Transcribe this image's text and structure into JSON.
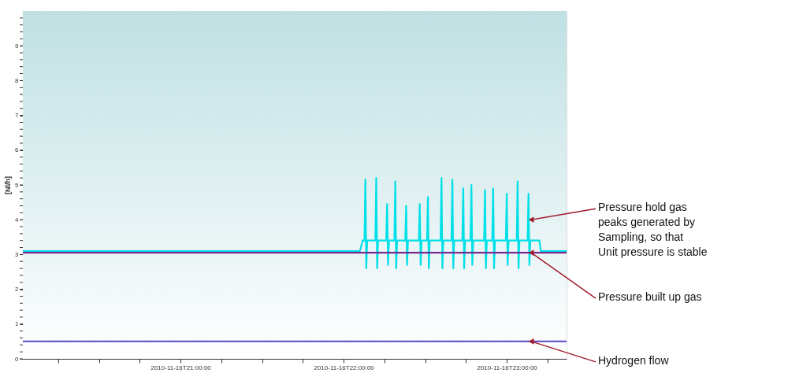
{
  "chart_data": {
    "type": "line",
    "ylabel": "[Nl/h]",
    "xlim": [
      "2010-11-16T20:02",
      "2010-11-16T23:22"
    ],
    "xticks": [
      {
        "value": "2010-11-16T20:15",
        "label": null
      },
      {
        "value": "2010-11-16T20:30",
        "label": null
      },
      {
        "value": "2010-11-16T20:45",
        "label": null
      },
      {
        "value": "2010-11-16T21:00",
        "label": "2010-11-16T21:00:00"
      },
      {
        "value": "2010-11-16T21:15",
        "label": null
      },
      {
        "value": "2010-11-16T21:30",
        "label": null
      },
      {
        "value": "2010-11-16T21:45",
        "label": null
      },
      {
        "value": "2010-11-16T22:00",
        "label": "2010-11-16T22:00:00"
      },
      {
        "value": "2010-11-16T22:15",
        "label": null
      },
      {
        "value": "2010-11-16T22:30",
        "label": null
      },
      {
        "value": "2010-11-16T22:45",
        "label": null
      },
      {
        "value": "2010-11-16T23:00",
        "label": "2010-11-16T23:00:00"
      },
      {
        "value": "2010-11-16T23:15",
        "label": null
      }
    ],
    "ylim": [
      0,
      10
    ],
    "yticks": [
      0,
      {
        "value": 0.2,
        "label": null
      },
      {
        "value": 0.4,
        "label": null
      },
      {
        "value": 0.6,
        "label": null
      },
      {
        "value": 0.8,
        "label": null
      },
      1,
      {
        "value": 1.2,
        "label": null
      },
      {
        "value": 1.4,
        "label": null
      },
      {
        "value": 1.6,
        "label": null
      },
      {
        "value": 1.8,
        "label": null
      },
      2,
      {
        "value": 2.2,
        "label": null
      },
      {
        "value": 2.4,
        "label": null
      },
      {
        "value": 2.6,
        "label": null
      },
      {
        "value": 2.8,
        "label": null
      },
      3,
      {
        "value": 3.2,
        "label": null
      },
      {
        "value": 3.4,
        "label": null
      },
      {
        "value": 3.6,
        "label": null
      },
      {
        "value": 3.8,
        "label": null
      },
      4,
      {
        "value": 4.2,
        "label": null
      },
      {
        "value": 4.4,
        "label": null
      },
      {
        "value": 4.6,
        "label": null
      },
      {
        "value": 4.8,
        "label": null
      },
      5,
      {
        "value": 5.2,
        "label": null
      },
      {
        "value": 5.4,
        "label": null
      },
      {
        "value": 5.6,
        "label": null
      },
      {
        "value": 5.8,
        "label": null
      },
      6,
      {
        "value": 6.2,
        "label": null
      },
      {
        "value": 6.4,
        "label": null
      },
      {
        "value": 6.6,
        "label": null
      },
      {
        "value": 6.8,
        "label": null
      },
      7,
      {
        "value": 7.2,
        "label": null
      },
      {
        "value": 7.4,
        "label": null
      },
      {
        "value": 7.6,
        "label": null
      },
      {
        "value": 7.8,
        "label": null
      },
      8,
      {
        "value": 8.2,
        "label": null
      },
      {
        "value": 8.4,
        "label": null
      },
      {
        "value": 8.6,
        "label": null
      },
      {
        "value": 8.8,
        "label": null
      },
      9,
      {
        "value": 9.2,
        "label": null
      },
      {
        "value": 9.4,
        "label": null
      },
      {
        "value": 9.6,
        "label": null
      },
      {
        "value": 9.8,
        "label": null
      }
    ],
    "marker": "none",
    "line_style": "solid",
    "series": [
      {
        "color": "#00e0e8",
        "x": [
          "2010-11-16T20:02",
          "2010-11-16T22:06",
          "2010-11-16T22:07",
          "2010-11-16T22:07:40",
          "2010-11-16T22:08",
          "2010-11-16T22:08:20",
          "2010-11-16T22:08:40",
          "2010-11-16T22:11:40",
          "2010-11-16T22:12",
          "2010-11-16T22:12:20",
          "2010-11-16T22:12:40",
          "2010-11-16T22:15:40",
          "2010-11-16T22:16",
          "2010-11-16T22:16:20",
          "2010-11-16T22:16:40",
          "2010-11-16T22:18:40",
          "2010-11-16T22:19",
          "2010-11-16T22:19:20",
          "2010-11-16T22:19:40",
          "2010-11-16T22:22:40",
          "2010-11-16T22:23",
          "2010-11-16T22:23:20",
          "2010-11-16T22:23:40",
          "2010-11-16T22:27:40",
          "2010-11-16T22:28",
          "2010-11-16T22:28:20",
          "2010-11-16T22:28:40",
          "2010-11-16T22:30:40",
          "2010-11-16T22:31",
          "2010-11-16T22:31:20",
          "2010-11-16T22:31:40",
          "2010-11-16T22:35:40",
          "2010-11-16T22:36",
          "2010-11-16T22:36:20",
          "2010-11-16T22:36:40",
          "2010-11-16T22:39:40",
          "2010-11-16T22:40",
          "2010-11-16T22:40:20",
          "2010-11-16T22:40:40",
          "2010-11-16T22:43:40",
          "2010-11-16T22:44",
          "2010-11-16T22:44:20",
          "2010-11-16T22:44:40",
          "2010-11-16T22:46:40",
          "2010-11-16T22:47",
          "2010-11-16T22:47:20",
          "2010-11-16T22:47:40",
          "2010-11-16T22:51:40",
          "2010-11-16T22:52",
          "2010-11-16T22:52:20",
          "2010-11-16T22:52:40",
          "2010-11-16T22:54:40",
          "2010-11-16T22:55",
          "2010-11-16T22:55:20",
          "2010-11-16T22:55:40",
          "2010-11-16T22:59:40",
          "2010-11-16T23:00",
          "2010-11-16T23:00:20",
          "2010-11-16T23:00:40",
          "2010-11-16T23:03:40",
          "2010-11-16T23:04",
          "2010-11-16T23:04:20",
          "2010-11-16T23:04:40",
          "2010-11-16T23:07:40",
          "2010-11-16T23:08",
          "2010-11-16T23:08:20",
          "2010-11-16T23:08:40",
          "2010-11-16T23:12",
          "2010-11-16T23:12:30",
          "2010-11-16T23:22"
        ],
        "values": [
          3.1,
          3.1,
          3.4,
          3.4,
          5.15,
          2.6,
          3.4,
          3.4,
          5.2,
          2.6,
          3.4,
          3.4,
          4.45,
          2.7,
          3.4,
          3.4,
          5.1,
          2.6,
          3.4,
          3.4,
          4.4,
          2.7,
          3.4,
          3.4,
          4.45,
          2.7,
          3.4,
          3.4,
          4.65,
          2.6,
          3.4,
          3.4,
          5.2,
          2.6,
          3.4,
          3.4,
          5.15,
          2.6,
          3.4,
          3.4,
          4.9,
          2.6,
          3.4,
          3.4,
          5.0,
          2.7,
          3.4,
          3.4,
          4.85,
          2.6,
          3.4,
          3.4,
          4.9,
          2.6,
          3.4,
          3.4,
          4.75,
          2.7,
          3.4,
          3.4,
          5.1,
          2.6,
          3.4,
          3.4,
          4.75,
          2.7,
          3.4,
          3.4,
          3.1,
          3.1
        ]
      },
      {
        "color": "#7a2a8c",
        "x": [
          "2010-11-16T20:02",
          "2010-11-16T20:30",
          "2010-11-16T21:00",
          "2010-11-16T21:30",
          "2010-11-16T22:00",
          "2010-11-16T22:30",
          "2010-11-16T23:00",
          "2010-11-16T23:22"
        ],
        "values": [
          3.05,
          3.05,
          3.05,
          3.05,
          3.05,
          3.05,
          3.05,
          3.05
        ]
      },
      {
        "color": "#6a5acd",
        "x": [
          "2010-11-16T20:02",
          "2010-11-16T23:22"
        ],
        "values": [
          0.5,
          0.5
        ]
      }
    ],
    "annotations": [
      {
        "text": "Pressure hold gas\npeaks generated by\nSampling, so that\nUnit pressure is stable",
        "x": "2010-11-16T23:09",
        "y": 4.0
      },
      {
        "text": "Pressure built up gas",
        "x": "2010-11-16T23:09",
        "y": 3.05
      },
      {
        "text": "Hydrogen flow",
        "x": "2010-11-16T23:09",
        "y": 0.5
      }
    ]
  }
}
